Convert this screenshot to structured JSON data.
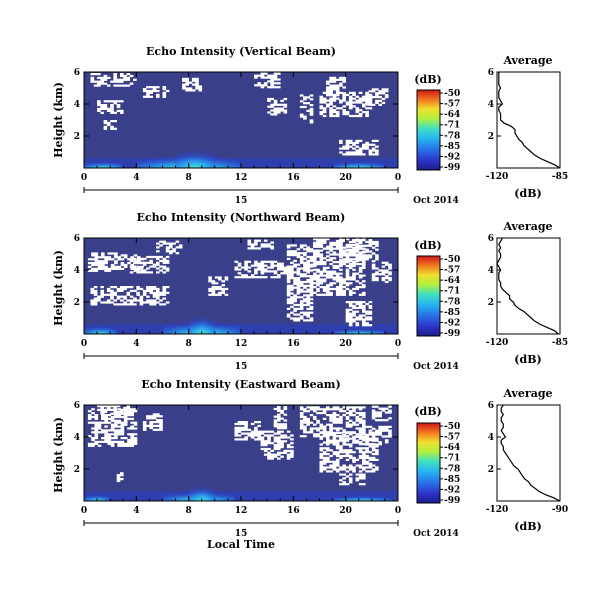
{
  "chart_data": [
    {
      "type": "heatmap",
      "title": "Echo Intensity (Vertical Beam)",
      "ylabel": "Height (km)",
      "xticks": [
        "0",
        "4",
        "8",
        "12",
        "16",
        "20",
        "0"
      ],
      "yticks": [
        "2",
        "4",
        "6"
      ],
      "day_label": "15",
      "date_label": "Oct 2014",
      "xlim": [
        0,
        24
      ],
      "ylim": [
        0,
        6
      ],
      "colorbar": {
        "unit": "(dB)",
        "labels": [
          "-50",
          "-57",
          "-64",
          "-71",
          "-78",
          "-85",
          "-92",
          "-99"
        ]
      },
      "profile": {
        "title": "Average",
        "xlabel": "(dB)",
        "xticks": [
          "-120",
          "-85"
        ],
        "yticks": [
          "2",
          "4",
          "6"
        ],
        "xlim": [
          -120,
          -85
        ],
        "y": [
          0.0,
          0.2,
          0.4,
          0.6,
          0.8,
          1.0,
          1.2,
          1.4,
          1.6,
          1.8,
          2.0,
          2.2,
          2.4,
          2.6,
          2.8,
          3.0,
          3.2,
          3.4,
          3.6,
          3.8,
          4.0,
          4.2,
          4.4,
          4.6,
          4.8,
          5.0,
          5.2,
          5.4,
          5.6,
          5.8,
          6.0
        ],
        "x": [
          -85,
          -88,
          -92,
          -96,
          -99,
          -101,
          -103,
          -105,
          -106,
          -108,
          -109,
          -110,
          -110,
          -112,
          -116,
          -118,
          -118,
          -118,
          -119,
          -119,
          -117,
          -118,
          -119,
          -119,
          -119,
          -118,
          -119,
          -119,
          -119,
          -119,
          -119
        ]
      },
      "white_patches": [
        [
          0.5,
          5.1,
          4.0,
          5.9
        ],
        [
          1.0,
          3.4,
          3.0,
          4.2
        ],
        [
          4.5,
          4.4,
          6.5,
          5.1
        ],
        [
          7.5,
          4.8,
          9.0,
          5.6
        ],
        [
          13.0,
          5.0,
          15.0,
          5.9
        ],
        [
          14.0,
          3.3,
          15.5,
          4.3
        ],
        [
          16.5,
          2.8,
          17.5,
          4.5
        ],
        [
          18.0,
          3.2,
          22.0,
          4.7
        ],
        [
          18.5,
          4.5,
          20.0,
          5.6
        ],
        [
          21.5,
          3.9,
          23.2,
          4.9
        ],
        [
          1.5,
          2.4,
          2.5,
          2.9
        ],
        [
          19.5,
          0.8,
          22.5,
          1.7
        ]
      ],
      "strong_echo": [
        [
          4.0,
          0.0,
          12.0,
          0.9
        ],
        [
          7.0,
          0.0,
          10.0,
          1.3
        ],
        [
          19.0,
          0.0,
          23.0,
          0.5
        ],
        [
          0.0,
          0.0,
          3.0,
          0.5
        ]
      ]
    },
    {
      "type": "heatmap",
      "title": "Echo Intensity (Northward Beam)",
      "ylabel": "Height (km)",
      "xticks": [
        "0",
        "4",
        "8",
        "12",
        "16",
        "20",
        "0"
      ],
      "yticks": [
        "2",
        "4",
        "6"
      ],
      "day_label": "15",
      "date_label": "Oct 2014",
      "xlim": [
        0,
        24
      ],
      "ylim": [
        0,
        6
      ],
      "colorbar": {
        "unit": "(dB)",
        "labels": [
          "-50",
          "-57",
          "-64",
          "-71",
          "-78",
          "-85",
          "-92",
          "-99"
        ]
      },
      "profile": {
        "title": "Average",
        "xlabel": "(dB)",
        "xticks": [
          "-120",
          "-85"
        ],
        "yticks": [
          "2",
          "4",
          "6"
        ],
        "xlim": [
          -120,
          -85
        ],
        "y": [
          0.0,
          0.2,
          0.4,
          0.6,
          0.8,
          1.0,
          1.2,
          1.4,
          1.6,
          1.8,
          2.0,
          2.2,
          2.4,
          2.6,
          2.8,
          3.0,
          3.2,
          3.4,
          3.6,
          3.8,
          4.0,
          4.2,
          4.4,
          4.6,
          4.8,
          5.0,
          5.2,
          5.4,
          5.6,
          5.8,
          6.0
        ],
        "x": [
          -86,
          -88,
          -92,
          -96,
          -99,
          -101,
          -103,
          -105,
          -108,
          -110,
          -111,
          -113,
          -113,
          -115,
          -117,
          -118,
          -118,
          -119,
          -119,
          -119,
          -118,
          -119,
          -120,
          -119,
          -118,
          -118,
          -119,
          -118,
          -119,
          -118,
          -117
        ]
      },
      "white_patches": [
        [
          0.3,
          3.9,
          4.5,
          5.0
        ],
        [
          0.5,
          1.8,
          6.5,
          3.0
        ],
        [
          3.5,
          3.8,
          6.5,
          4.8
        ],
        [
          5.5,
          5.0,
          7.5,
          5.8
        ],
        [
          9.5,
          2.4,
          11.0,
          3.5
        ],
        [
          11.5,
          3.5,
          15.5,
          4.5
        ],
        [
          12.5,
          5.3,
          14.5,
          5.9
        ],
        [
          15.5,
          0.8,
          17.5,
          5.6
        ],
        [
          17.5,
          2.4,
          21.5,
          5.9
        ],
        [
          19.5,
          4.5,
          22.5,
          5.9
        ],
        [
          20.0,
          0.5,
          22.0,
          2.0
        ],
        [
          22.0,
          3.2,
          23.5,
          4.5
        ]
      ],
      "strong_echo": [
        [
          6.0,
          0.0,
          12.0,
          0.9
        ],
        [
          8.0,
          0.0,
          10.0,
          1.3
        ],
        [
          0.0,
          0.0,
          2.5,
          0.6
        ],
        [
          19.0,
          0.0,
          23.0,
          0.4
        ]
      ]
    },
    {
      "type": "heatmap",
      "title": "Echo Intensity (Eastward Beam)",
      "ylabel": "Height (km)",
      "xlabel": "Local Time",
      "xticks": [
        "0",
        "4",
        "8",
        "12",
        "16",
        "20",
        "0"
      ],
      "yticks": [
        "2",
        "4",
        "6"
      ],
      "day_label": "15",
      "date_label": "Oct 2014",
      "xlim": [
        0,
        24
      ],
      "ylim": [
        0,
        6
      ],
      "colorbar": {
        "unit": "(dB)",
        "labels": [
          "-50",
          "-57",
          "-64",
          "-71",
          "-78",
          "-85",
          "-92",
          "-99"
        ]
      },
      "profile": {
        "title": "Average",
        "xlabel": "(dB)",
        "xticks": [
          "-120",
          "-90"
        ],
        "yticks": [
          "2",
          "4",
          "6"
        ],
        "xlim": [
          -120,
          -90
        ],
        "y": [
          0.0,
          0.2,
          0.4,
          0.6,
          0.8,
          1.0,
          1.2,
          1.4,
          1.6,
          1.8,
          2.0,
          2.2,
          2.4,
          2.6,
          2.8,
          3.0,
          3.2,
          3.4,
          3.6,
          3.8,
          4.0,
          4.2,
          4.4,
          4.6,
          4.8,
          5.0,
          5.2,
          5.4,
          5.6,
          5.8,
          6.0
        ],
        "x": [
          -90,
          -93,
          -97,
          -100,
          -102,
          -104,
          -105,
          -107,
          -108,
          -109,
          -110,
          -112,
          -113,
          -114,
          -115,
          -116,
          -117,
          -117,
          -118,
          -118,
          -116,
          -117,
          -118,
          -117,
          -117,
          -118,
          -118,
          -117,
          -118,
          -118,
          -117
        ]
      },
      "white_patches": [
        [
          0.3,
          3.4,
          4.0,
          5.7
        ],
        [
          1.0,
          5.4,
          3.5,
          6.0
        ],
        [
          4.5,
          4.4,
          6.0,
          5.4
        ],
        [
          11.5,
          3.8,
          13.5,
          4.9
        ],
        [
          13.5,
          2.6,
          16.0,
          4.3
        ],
        [
          14.5,
          4.5,
          15.5,
          5.9
        ],
        [
          16.5,
          4.0,
          21.5,
          5.9
        ],
        [
          18.0,
          1.8,
          22.5,
          4.3
        ],
        [
          21.0,
          3.5,
          23.5,
          4.6
        ],
        [
          2.5,
          1.2,
          3.0,
          2.0
        ],
        [
          19.5,
          1.0,
          21.5,
          1.7
        ],
        [
          22.0,
          5.0,
          23.5,
          5.9
        ]
      ],
      "strong_echo": [
        [
          6.0,
          0.0,
          11.5,
          0.7
        ],
        [
          8.0,
          0.0,
          10.0,
          1.1
        ],
        [
          0.0,
          0.0,
          2.0,
          0.5
        ],
        [
          19.0,
          0.0,
          23.5,
          0.4
        ]
      ]
    }
  ]
}
